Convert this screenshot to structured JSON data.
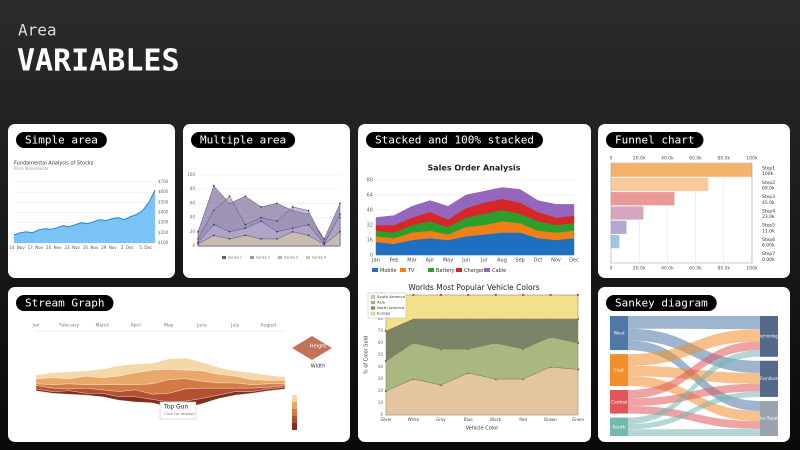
{
  "header": {
    "subtitle": "Area",
    "title": "VARIABLES"
  },
  "cards": [
    "Simple area",
    "Multiple area",
    "Stacked and 100% stacked",
    "Funnel chart",
    "Stream Graph",
    "Sankey diagram"
  ],
  "chart_data": [
    {
      "type": "area",
      "title": "Fundamental Analysis of Stocks",
      "subtitle": "Price Movements",
      "color": "#7cc3f5",
      "line_color": "#1e88e5",
      "categories": [
        "14. Nov",
        null,
        null,
        "17. Nov",
        null,
        null,
        "20. Nov",
        null,
        null,
        "23. Nov",
        null,
        null,
        "26. Nov",
        null,
        null,
        "29. Nov",
        null,
        null,
        "2. Dec",
        null,
        null,
        "5. Dec",
        null,
        null
      ],
      "values": [
        180,
        200,
        210,
        200,
        230,
        240,
        235,
        250,
        270,
        260,
        280,
        300,
        290,
        310,
        330,
        320,
        340,
        350,
        330,
        360,
        380,
        420,
        500,
        620
      ],
      "ylim": [
        100,
        700
      ],
      "yticks": [
        {
          "value": 100,
          "label": "$100"
        },
        {
          "value": 200,
          "label": "$200"
        },
        {
          "value": 300,
          "label": "$300"
        },
        {
          "value": 400,
          "label": "$400"
        },
        {
          "value": 500,
          "label": "$500"
        },
        {
          "value": 600,
          "label": "$600"
        },
        {
          "value": 700,
          "label": "$700"
        }
      ],
      "grid": true
    },
    {
      "type": "multi_area",
      "categories": [
        null,
        null,
        null,
        null,
        null,
        null,
        null,
        null,
        null,
        null
      ],
      "ylim": [
        0,
        100
      ],
      "yticks": [
        0,
        20,
        40,
        60,
        80,
        100
      ],
      "grid": true,
      "series": [
        {
          "name": "Series 1",
          "color": "#6a5a8c",
          "values": [
            20,
            85,
            60,
            70,
            55,
            60,
            50,
            45,
            10,
            60
          ]
        },
        {
          "name": "Series 2",
          "color": "#9a8fb8",
          "values": [
            10,
            50,
            70,
            30,
            40,
            35,
            55,
            50,
            5,
            40
          ]
        },
        {
          "name": "Series 3",
          "color": "#b9b0d0",
          "values": [
            5,
            30,
            20,
            25,
            35,
            20,
            25,
            30,
            3,
            45
          ]
        },
        {
          "name": "Series 4",
          "color": "#d9c9a0",
          "values": [
            3,
            15,
            10,
            15,
            10,
            10,
            20,
            15,
            2,
            20
          ]
        }
      ]
    },
    {
      "type": "stacked_area",
      "title": "Sales Order Analysis",
      "categories": [
        "Jan",
        "Feb",
        "Mar",
        "Apr",
        "May",
        "Jun",
        "Jul",
        "Aug",
        "Sep",
        "Oct",
        "Nov",
        "Dec"
      ],
      "ylim": [
        0,
        80
      ],
      "yticks": [
        0,
        16,
        32,
        48,
        64,
        80
      ],
      "grid": true,
      "series": [
        {
          "name": "Mobile",
          "color": "#1f6fc1",
          "values": [
            14,
            12,
            16,
            18,
            16,
            20,
            22,
            24,
            24,
            18,
            16,
            18
          ]
        },
        {
          "name": "TV",
          "color": "#f07f1a",
          "values": [
            6,
            6,
            8,
            8,
            6,
            10,
            10,
            12,
            10,
            8,
            8,
            8
          ]
        },
        {
          "name": "Battery",
          "color": "#2aa02a",
          "values": [
            6,
            6,
            8,
            10,
            8,
            10,
            12,
            12,
            10,
            10,
            8,
            8
          ]
        },
        {
          "name": "Charger",
          "color": "#d62728",
          "values": [
            6,
            8,
            8,
            10,
            8,
            10,
            12,
            12,
            12,
            10,
            8,
            8
          ]
        },
        {
          "name": "Cable",
          "color": "#9467bd",
          "values": [
            8,
            10,
            12,
            12,
            14,
            14,
            12,
            12,
            14,
            12,
            14,
            12
          ]
        }
      ]
    },
    {
      "type": "stacked_area_100",
      "title": "Worlds Most Popular Vehicle Colors",
      "x_label": "Vehicle Color",
      "y_label": "% of Color Sold",
      "categories": [
        "Silver",
        "White",
        "Gray",
        "Blue",
        "Black",
        "Red",
        "Brown",
        "Green"
      ],
      "ylim": [
        0,
        100
      ],
      "yticks": [
        0,
        10,
        20,
        30,
        40,
        50,
        60,
        70,
        80,
        90,
        100
      ],
      "grid": true,
      "series": [
        {
          "name": "South America",
          "color": "#e3c6a0",
          "values": [
            20,
            30,
            25,
            35,
            30,
            30,
            40,
            38
          ]
        },
        {
          "name": "Asia",
          "color": "#a9b880",
          "values": [
            25,
            30,
            30,
            20,
            30,
            25,
            25,
            22
          ]
        },
        {
          "name": "North America",
          "color": "#7b8466",
          "values": [
            25,
            20,
            25,
            25,
            20,
            25,
            15,
            20
          ]
        },
        {
          "name": "Europe",
          "color": "#f3e08a",
          "values": [
            30,
            20,
            20,
            20,
            20,
            20,
            20,
            20
          ]
        }
      ]
    },
    {
      "type": "funnel",
      "categories": [
        "Step1",
        "Step2",
        "Step3",
        "Step4",
        "Step5",
        "Step6",
        "Step7"
      ],
      "values": [
        100,
        69,
        45,
        23,
        11,
        6,
        0
      ],
      "value_labels": [
        "100k",
        "69.0k",
        "45.0k",
        "23.0k",
        "11.0k",
        "6.00k",
        "0.00k"
      ],
      "colors": [
        "#f6b26b",
        "#f9cb9c",
        "#ea9999",
        "#d5a6bd",
        "#b4a7d6",
        "#9fc5e8",
        "#93c47d"
      ],
      "xlim": [
        0,
        100
      ],
      "xticks": [
        0,
        {
          "value": 20,
          "label": "20.0k"
        },
        {
          "value": 40,
          "label": "40.0k"
        },
        {
          "value": 60,
          "label": "60.0k"
        },
        {
          "value": 80,
          "label": "80.0k"
        },
        {
          "value": 100,
          "label": "100k"
        }
      ],
      "grid": true
    },
    {
      "type": "streamgraph",
      "categories": [
        "Jan",
        null,
        "February",
        null,
        "March",
        null,
        "April",
        null,
        "May",
        null,
        "June",
        null,
        "July",
        null,
        "August",
        null
      ],
      "annotation": "Top Gun",
      "annotation_note": "Click for release",
      "legend_notes": [
        "Height",
        "Width"
      ],
      "series": [
        {
          "name": "A",
          "color": "#f6d7a7",
          "values": [
            2,
            3,
            4,
            3,
            5,
            6,
            5,
            4,
            6,
            7,
            5,
            4,
            3,
            4,
            3,
            2
          ]
        },
        {
          "name": "B",
          "color": "#e9a86b",
          "values": [
            3,
            4,
            3,
            5,
            4,
            5,
            7,
            8,
            6,
            5,
            6,
            5,
            4,
            3,
            2,
            2
          ]
        },
        {
          "name": "C",
          "color": "#d27b45",
          "values": [
            1,
            2,
            3,
            2,
            3,
            4,
            3,
            6,
            8,
            6,
            4,
            3,
            3,
            2,
            2,
            1
          ]
        },
        {
          "name": "D",
          "color": "#b2502f",
          "values": [
            2,
            2,
            1,
            3,
            2,
            3,
            4,
            3,
            5,
            7,
            6,
            4,
            2,
            2,
            1,
            1
          ]
        },
        {
          "name": "E",
          "color": "#7f2f1f",
          "values": [
            1,
            1,
            2,
            1,
            2,
            2,
            3,
            2,
            3,
            4,
            3,
            2,
            2,
            1,
            1,
            1
          ]
        }
      ]
    },
    {
      "type": "sankey",
      "sources": [
        {
          "name": "West",
          "color": "#4e79a7",
          "value": 725
        },
        {
          "name": "East",
          "color": "#f28e2b",
          "value": 679
        },
        {
          "name": "Central",
          "color": "#e15759",
          "value": 501
        },
        {
          "name": "South",
          "color": "#76b7b2",
          "value": 392
        }
      ],
      "targets": [
        {
          "name": "Technology",
          "color": "#55698a",
          "value": 836
        },
        {
          "name": "Furniture",
          "color": "#55698a",
          "value": 742
        },
        {
          "name": "Office Supplies",
          "color": "#9aa3b0",
          "value": 719
        }
      ],
      "links": [
        [
          270,
          250,
          205
        ],
        [
          250,
          220,
          209
        ],
        [
          180,
          160,
          161
        ],
        [
          136,
          112,
          144
        ]
      ]
    }
  ]
}
